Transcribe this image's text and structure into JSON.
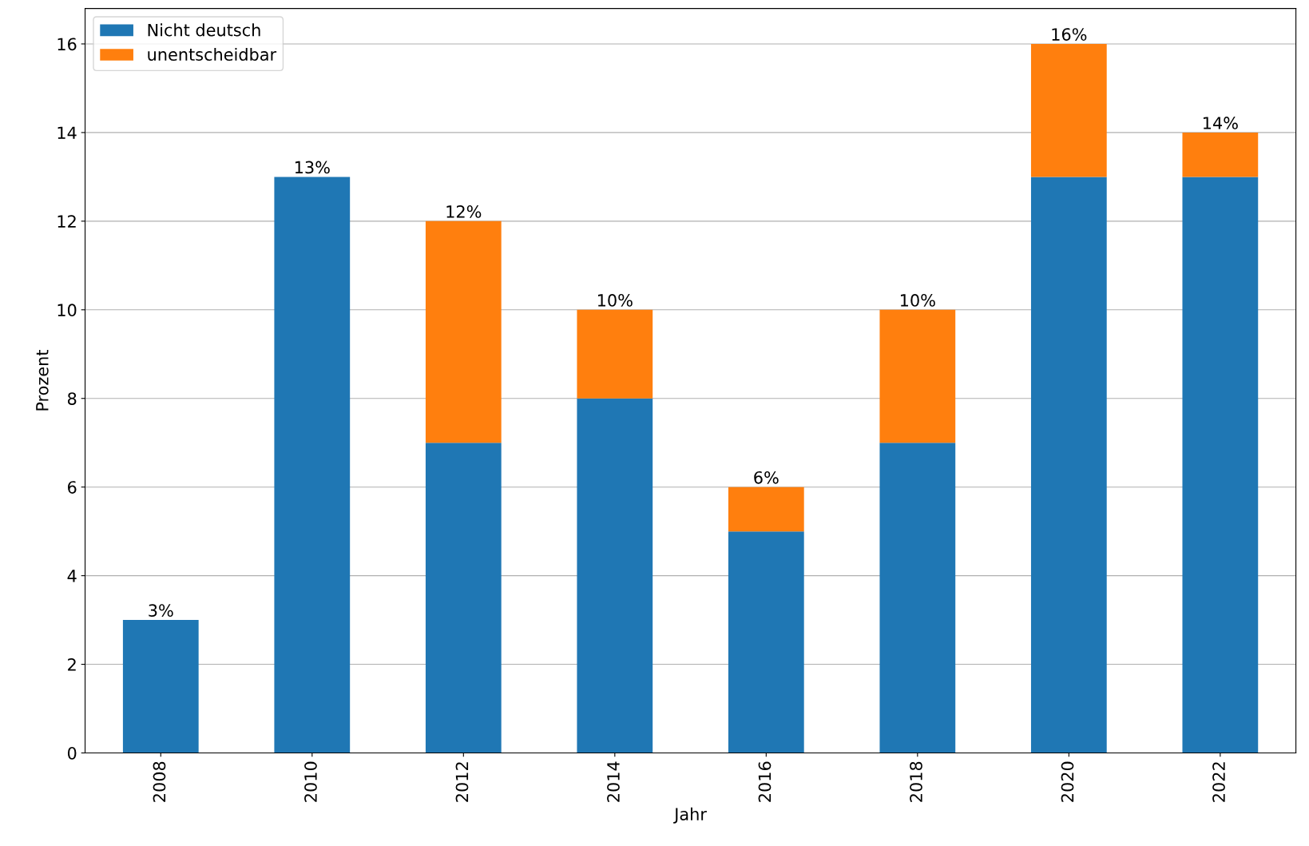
{
  "chart_data": {
    "type": "bar",
    "stacked": true,
    "xlabel": "Jahr",
    "ylabel": "Prozent",
    "categories": [
      "2008",
      "2010",
      "2012",
      "2014",
      "2016",
      "2018",
      "2020",
      "2022"
    ],
    "series": [
      {
        "name": "Nicht deutsch",
        "color": "#1f77b4",
        "values": [
          3,
          13,
          7,
          8,
          5,
          7,
          13,
          13
        ]
      },
      {
        "name": "unentscheidbar",
        "color": "#ff7f0e",
        "values": [
          0,
          0,
          5,
          2,
          1,
          3,
          3,
          1
        ]
      }
    ],
    "totals": [
      "3%",
      "13%",
      "12%",
      "10%",
      "6%",
      "10%",
      "16%",
      "14%"
    ],
    "ylim": [
      0,
      16.8
    ],
    "yticks": [
      0,
      2,
      4,
      6,
      8,
      10,
      12,
      14,
      16
    ],
    "grid": "y",
    "legend": "top left"
  }
}
